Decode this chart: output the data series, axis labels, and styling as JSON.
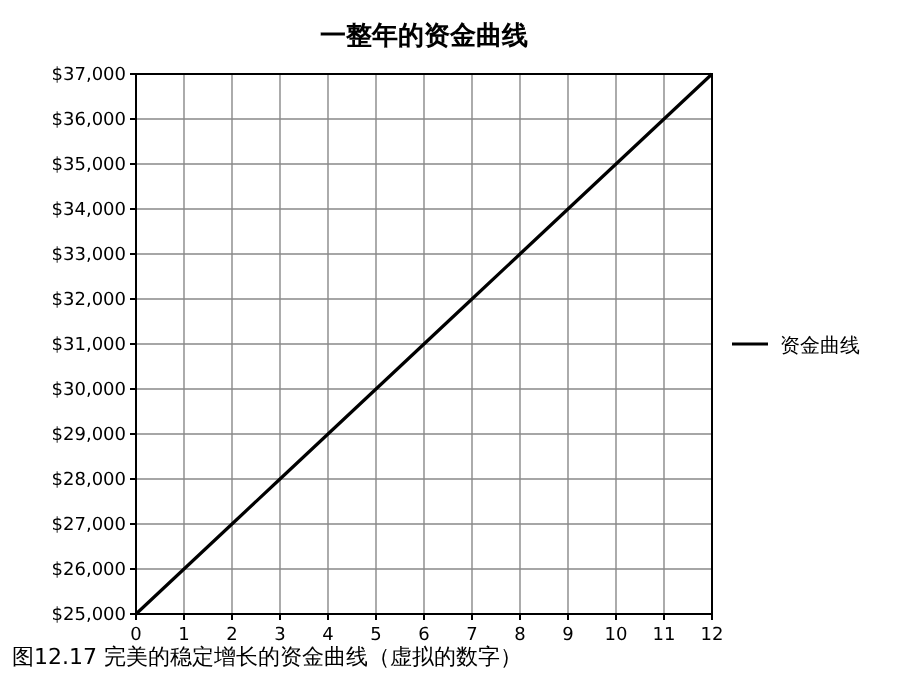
{
  "chart_data": {
    "type": "line",
    "title": "一整年的资金曲线",
    "x": [
      0,
      1,
      2,
      3,
      4,
      5,
      6,
      7,
      8,
      9,
      10,
      11,
      12
    ],
    "series": [
      {
        "name": "资金曲线",
        "color": "#000000",
        "values": [
          25000,
          26000,
          27000,
          28000,
          29000,
          30000,
          31000,
          32000,
          33000,
          34000,
          35000,
          36000,
          37000
        ]
      }
    ],
    "xlim": [
      0,
      12
    ],
    "xticks": [
      0,
      1,
      2,
      3,
      4,
      5,
      6,
      7,
      8,
      9,
      10,
      11,
      12
    ],
    "ylim": [
      25000,
      37000
    ],
    "yticks": [
      {
        "value": 25000,
        "label": "$25,000"
      },
      {
        "value": 26000,
        "label": "$26,000"
      },
      {
        "value": 27000,
        "label": "$27,000"
      },
      {
        "value": 28000,
        "label": "$28,000"
      },
      {
        "value": 29000,
        "label": "$29,000"
      },
      {
        "value": 30000,
        "label": "$30,000"
      },
      {
        "value": 31000,
        "label": "$31,000"
      },
      {
        "value": 32000,
        "label": "$32,000"
      },
      {
        "value": 33000,
        "label": "$33,000"
      },
      {
        "value": 34000,
        "label": "$34,000"
      },
      {
        "value": 35000,
        "label": "$35,000"
      },
      {
        "value": 36000,
        "label": "$36,000"
      },
      {
        "value": 37000,
        "label": "$37,000"
      }
    ],
    "grid": true,
    "legend": "right",
    "marker": "none",
    "line_style": "solid",
    "annotations": [
      "图12.17 完美的稳定增长的资金曲线（虚拟的数字）"
    ]
  }
}
